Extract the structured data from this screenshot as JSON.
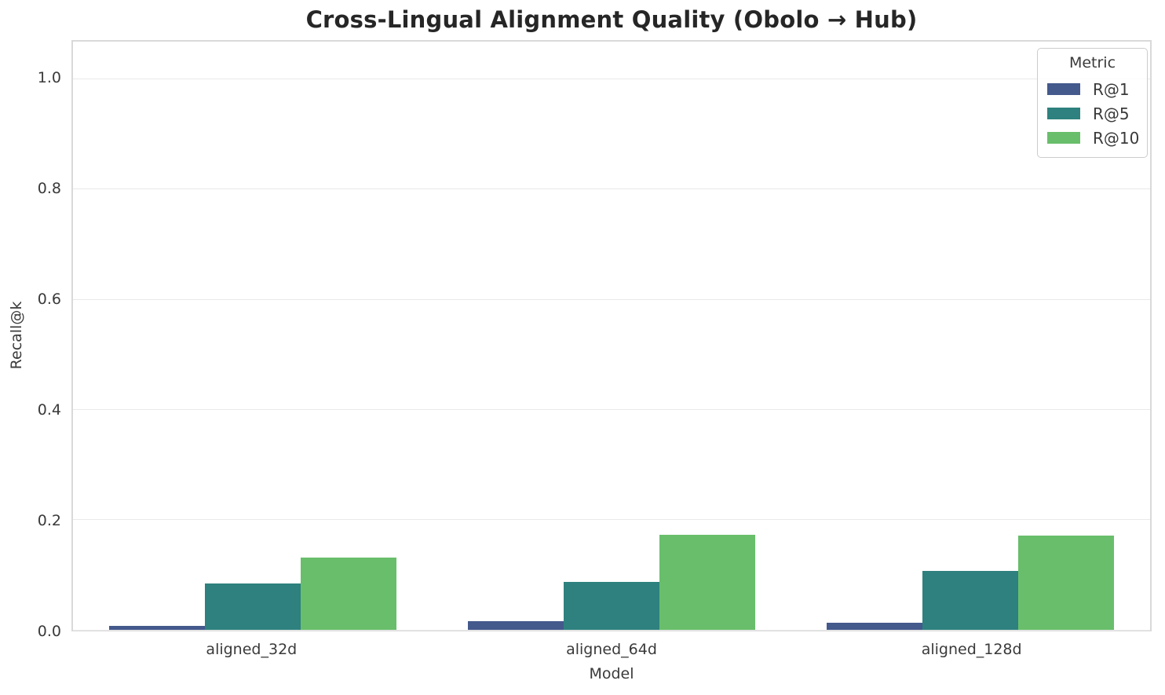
{
  "chart_data": {
    "type": "bar",
    "title": "Cross-Lingual Alignment Quality (Obolo → Hub)",
    "xlabel": "Model",
    "ylabel": "Recall@k",
    "categories": [
      "aligned_32d",
      "aligned_64d",
      "aligned_128d"
    ],
    "series": [
      {
        "name": "R@1",
        "color": "#44598c",
        "values": [
          0.007,
          0.015,
          0.013
        ]
      },
      {
        "name": "R@5",
        "color": "#2e817e",
        "values": [
          0.084,
          0.087,
          0.107
        ]
      },
      {
        "name": "R@10",
        "color": "#69be6b",
        "values": [
          0.131,
          0.173,
          0.171
        ]
      }
    ],
    "yticks": [
      0.0,
      0.2,
      0.4,
      0.6,
      0.8,
      1.0
    ],
    "ylim": [
      0,
      1.068
    ],
    "grid": true,
    "legend": {
      "title": "Metric",
      "position": "upper right"
    },
    "colors": {
      "grid": "#e9e9e9",
      "spine": "#d9d9d9",
      "text": "#3a3a3a",
      "title_text": "#262626",
      "background": "#ffffff"
    }
  }
}
